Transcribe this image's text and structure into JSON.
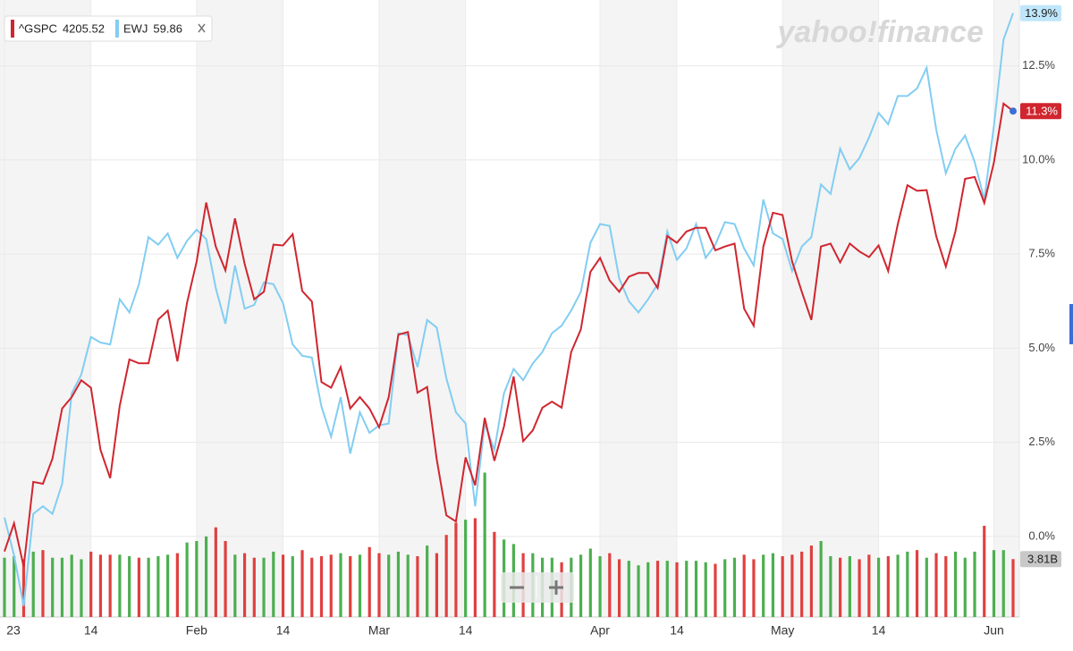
{
  "chart_data": {
    "type": "line",
    "watermark": "yahoo!finance",
    "categories": [
      "23",
      null,
      null,
      null,
      null,
      null,
      null,
      null,
      null,
      "14",
      null,
      null,
      null,
      null,
      null,
      null,
      null,
      null,
      null,
      null,
      "Feb",
      null,
      null,
      null,
      null,
      null,
      null,
      null,
      null,
      "14",
      null,
      null,
      null,
      null,
      null,
      null,
      null,
      null,
      null,
      "Mar",
      null,
      null,
      null,
      null,
      null,
      null,
      null,
      null,
      "14",
      null,
      null,
      null,
      null,
      null,
      null,
      null,
      null,
      null,
      null,
      null,
      null,
      null,
      "Apr",
      null,
      null,
      null,
      null,
      null,
      null,
      null,
      "14",
      null,
      null,
      null,
      null,
      null,
      null,
      null,
      null,
      null,
      null,
      "May",
      null,
      null,
      null,
      null,
      null,
      null,
      null,
      null,
      null,
      "14",
      null,
      null,
      null,
      null,
      null,
      null,
      null,
      null,
      null,
      null,
      null,
      "Jun",
      null,
      null
    ],
    "series": [
      {
        "name": "^GSPC",
        "quote": 4205.52,
        "color": "#d0262f",
        "values": [
          -0.4,
          0.35,
          -0.8,
          1.45,
          1.4,
          2.07,
          3.4,
          3.7,
          4.15,
          3.95,
          2.3,
          1.55,
          3.47,
          4.7,
          4.6,
          4.6,
          5.76,
          6.0,
          4.65,
          6.2,
          7.3,
          8.87,
          7.7,
          7.07,
          8.45,
          7.24,
          6.3,
          6.5,
          7.75,
          7.73,
          8.03,
          6.52,
          6.24,
          4.1,
          3.95,
          4.5,
          3.4,
          3.7,
          3.4,
          2.9,
          3.7,
          5.36,
          5.43,
          3.82,
          3.97,
          2.05,
          0.56,
          0.4,
          2.1,
          1.36,
          3.15,
          2.01,
          2.92,
          4.25,
          2.53,
          2.82,
          3.42,
          3.58,
          3.42,
          4.9,
          5.5,
          7.03,
          7.4,
          6.8,
          6.5,
          6.9,
          7.0,
          7.0,
          6.6,
          7.98,
          7.8,
          8.1,
          8.2,
          8.2,
          7.6,
          7.7,
          7.78,
          6.05,
          5.6,
          7.7,
          8.6,
          8.54,
          7.3,
          6.5,
          5.75,
          7.7,
          7.78,
          7.28,
          7.78,
          7.57,
          7.42,
          7.73,
          7.05,
          8.3,
          9.33,
          9.18,
          9.2,
          7.97,
          7.17,
          8.1,
          9.5,
          9.55,
          8.86,
          9.93,
          11.5,
          11.3
        ],
        "value_labels": [
          null,
          null,
          null,
          null,
          null,
          null,
          null,
          null,
          null,
          null,
          null,
          null,
          null,
          null,
          null,
          null,
          null,
          null,
          null,
          null,
          null,
          null,
          null,
          null,
          null,
          null,
          null,
          null,
          null,
          null,
          null,
          null,
          null,
          null,
          null,
          null,
          null,
          null,
          null,
          null,
          null,
          null,
          null,
          null,
          null,
          null,
          null,
          null,
          null,
          null,
          null,
          null,
          null,
          null,
          null,
          null,
          null,
          null,
          null,
          null,
          null,
          null,
          null,
          null,
          null,
          null,
          null,
          null,
          null,
          null,
          null,
          null,
          null,
          null,
          null,
          null,
          null,
          null,
          null,
          null,
          null,
          null,
          null,
          null,
          null,
          null,
          null,
          null,
          null,
          null,
          null,
          null,
          null,
          null,
          null,
          null,
          null,
          null,
          null,
          null,
          null,
          null,
          null,
          null,
          null,
          "11.3%"
        ]
      },
      {
        "name": "EWJ",
        "quote": 59.86,
        "color": "#82cdf2",
        "values": [
          0.5,
          -0.5,
          -1.85,
          0.6,
          0.8,
          0.6,
          1.4,
          3.8,
          4.3,
          5.3,
          5.15,
          5.1,
          6.3,
          5.95,
          6.7,
          7.95,
          7.75,
          8.05,
          7.4,
          7.85,
          8.15,
          7.9,
          6.6,
          5.65,
          7.2,
          6.05,
          6.15,
          6.75,
          6.7,
          6.2,
          5.1,
          4.8,
          4.75,
          3.45,
          2.65,
          3.7,
          2.2,
          3.3,
          2.75,
          2.95,
          3.0,
          5.4,
          5.35,
          4.5,
          5.75,
          5.55,
          4.2,
          3.3,
          3.0,
          0.8,
          3.0,
          2.3,
          3.8,
          4.45,
          4.15,
          4.6,
          4.9,
          5.4,
          5.6,
          6.0,
          6.5,
          7.8,
          8.3,
          8.25,
          6.85,
          6.25,
          5.95,
          6.3,
          6.7,
          8.1,
          7.35,
          7.65,
          8.3,
          7.4,
          7.75,
          8.35,
          8.3,
          7.65,
          7.2,
          8.95,
          8.05,
          7.9,
          7.05,
          7.7,
          7.95,
          9.35,
          9.1,
          10.3,
          9.75,
          10.05,
          10.6,
          11.25,
          10.95,
          11.7,
          11.7,
          11.9,
          12.45,
          10.8,
          9.65,
          10.3,
          10.65,
          9.95,
          8.95,
          10.9,
          13.2,
          13.9
        ],
        "value_labels": [
          null,
          null,
          null,
          null,
          null,
          null,
          null,
          null,
          null,
          null,
          null,
          null,
          null,
          null,
          null,
          null,
          null,
          null,
          null,
          null,
          null,
          null,
          null,
          null,
          null,
          null,
          null,
          null,
          null,
          null,
          null,
          null,
          null,
          null,
          null,
          null,
          null,
          null,
          null,
          null,
          null,
          null,
          null,
          null,
          null,
          null,
          null,
          null,
          null,
          null,
          null,
          null,
          null,
          null,
          null,
          null,
          null,
          null,
          null,
          null,
          null,
          null,
          null,
          null,
          null,
          null,
          null,
          null,
          null,
          null,
          null,
          null,
          null,
          null,
          null,
          null,
          null,
          null,
          null,
          null,
          null,
          null,
          null,
          null,
          null,
          null,
          null,
          null,
          null,
          null,
          null,
          null,
          null,
          null,
          null,
          null,
          null,
          null,
          null,
          null,
          null,
          null,
          null,
          null,
          null,
          "13.9%"
        ]
      }
    ],
    "volume": {
      "up_color": "#4caf50",
      "down_color": "#e0403f",
      "vlim": [
        0,
        10
      ],
      "values": [
        3.9,
        4.0,
        3.8,
        4.3,
        4.4,
        3.9,
        3.9,
        4.1,
        3.8,
        4.3,
        4.1,
        4.1,
        4.1,
        4.0,
        3.9,
        3.9,
        4.0,
        4.1,
        4.2,
        4.9,
        5.0,
        5.3,
        5.9,
        5.0,
        4.1,
        4.2,
        3.9,
        3.9,
        4.3,
        4.1,
        4.0,
        4.4,
        3.9,
        4.0,
        4.1,
        4.2,
        4.0,
        4.1,
        4.6,
        4.2,
        4.1,
        4.3,
        4.1,
        4.0,
        4.7,
        4.2,
        5.4,
        6.2,
        6.4,
        6.5,
        9.5,
        5.6,
        5.1,
        4.8,
        4.2,
        4.2,
        3.9,
        3.9,
        3.6,
        3.9,
        4.1,
        4.5,
        4.0,
        4.2,
        3.8,
        3.7,
        3.4,
        3.6,
        3.7,
        3.7,
        3.6,
        3.7,
        3.7,
        3.6,
        3.5,
        3.8,
        3.9,
        4.1,
        3.8,
        4.1,
        4.2,
        4.0,
        4.1,
        4.3,
        4.7,
        5.0,
        4.0,
        3.9,
        4.0,
        3.8,
        4.1,
        3.9,
        4.0,
        4.1,
        4.3,
        4.4,
        3.9,
        4.2,
        4.0,
        4.3,
        3.9,
        4.3,
        6.0,
        4.4,
        4.4,
        3.81
      ],
      "value_labels": [
        null,
        null,
        null,
        null,
        null,
        null,
        null,
        null,
        null,
        null,
        null,
        null,
        null,
        null,
        null,
        null,
        null,
        null,
        null,
        null,
        null,
        null,
        null,
        null,
        null,
        null,
        null,
        null,
        null,
        null,
        null,
        null,
        null,
        null,
        null,
        null,
        null,
        null,
        null,
        null,
        null,
        null,
        null,
        null,
        null,
        null,
        null,
        null,
        null,
        null,
        null,
        null,
        null,
        null,
        null,
        null,
        null,
        null,
        null,
        null,
        null,
        null,
        null,
        null,
        null,
        null,
        null,
        null,
        null,
        null,
        null,
        null,
        null,
        null,
        null,
        null,
        null,
        null,
        null,
        null,
        null,
        null,
        null,
        null,
        null,
        null,
        null,
        null,
        null,
        null,
        null,
        null,
        null,
        null,
        null,
        null,
        null,
        null,
        null,
        null,
        null,
        null,
        null,
        null,
        null,
        "3.81B"
      ]
    },
    "ylim": [
      -2.14,
      14.25
    ],
    "yticks": [
      {
        "value": 0,
        "label": "0.0%"
      },
      {
        "value": 2.5,
        "label": "2.5%"
      },
      {
        "value": 5,
        "label": "5.0%"
      },
      {
        "value": 7.5,
        "label": "7.5%"
      },
      {
        "value": 10,
        "label": "10.0%"
      },
      {
        "value": 12.5,
        "label": "12.5%"
      }
    ],
    "grid": true
  }
}
